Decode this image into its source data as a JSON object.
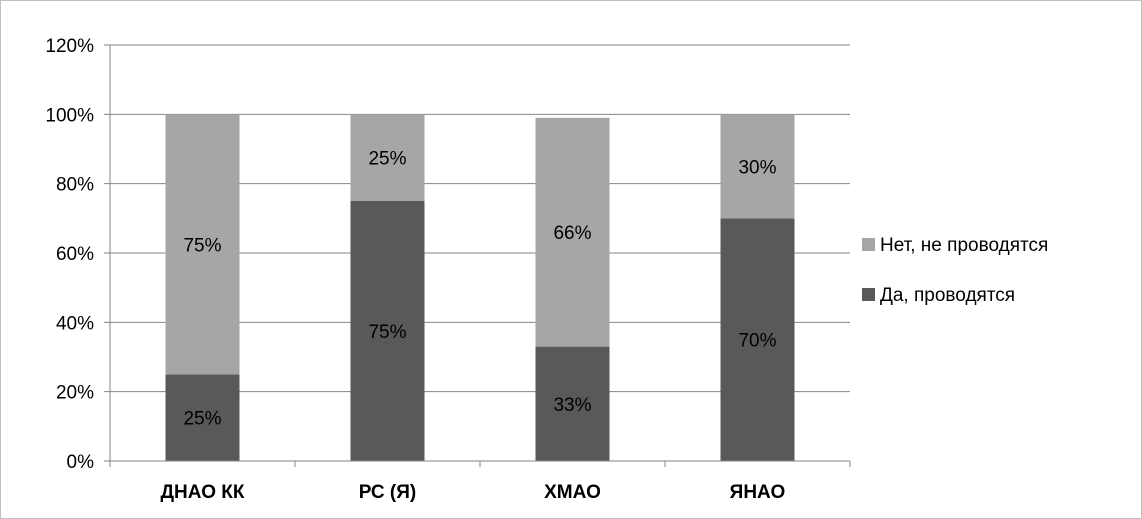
{
  "chart_data": {
    "type": "bar",
    "stacked": true,
    "categories": [
      "ДНАО КК",
      "РС (Я)",
      "ХМАО",
      "ЯНАО"
    ],
    "series": [
      {
        "name": "Да, проводятся",
        "values": [
          25,
          75,
          33,
          70
        ],
        "labels": [
          "25%",
          "75%",
          "33%",
          "70%"
        ],
        "color": "#595959"
      },
      {
        "name": "Нет, не проводятся",
        "values": [
          75,
          25,
          66,
          30
        ],
        "labels": [
          "75%",
          "25%",
          "66%",
          "30%"
        ],
        "color": "#a6a6a6"
      }
    ],
    "ylim": [
      0,
      120
    ],
    "yticks": [
      "0%",
      "20%",
      "40%",
      "60%",
      "80%",
      "100%",
      "120%"
    ],
    "ytick_values": [
      0,
      20,
      40,
      60,
      80,
      100,
      120
    ],
    "grid": true,
    "legend_placement": "right",
    "legend_order": [
      "Нет, не проводятся",
      "Да, проводятся"
    ],
    "gridline_color": "#868686"
  }
}
